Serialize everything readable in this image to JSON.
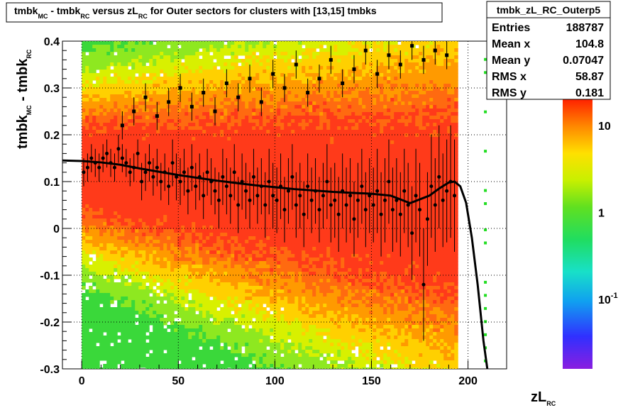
{
  "chart_data": {
    "type": "heatmap",
    "title_parts": [
      {
        "text": "tmbk",
        "sub": "MC"
      },
      {
        "text": " - tmbk",
        "sub": "RC"
      },
      {
        "text": " versus zL",
        "sub": "RC"
      },
      {
        "text": " for Outer sectors for clusters with [13,15] tmbks",
        "sub": ""
      }
    ],
    "xlabel": {
      "text": "zL",
      "sub": "RC"
    },
    "ylabel": {
      "text": "tmbk",
      "sub": "MC",
      "text2": " - tmbk",
      "sub2": "RC"
    },
    "xlim": [
      -10,
      220
    ],
    "ylim": [
      -0.3,
      0.4
    ],
    "x_ticks": [
      {
        "label": "0",
        "v": 0
      },
      {
        "label": "50",
        "v": 50
      },
      {
        "label": "100",
        "v": 100
      },
      {
        "label": "150",
        "v": 150
      },
      {
        "label": "200",
        "v": 200
      }
    ],
    "y_ticks": [
      {
        "label": "-0.3",
        "v": -0.3
      },
      {
        "label": "-0.2",
        "v": -0.2
      },
      {
        "label": "-0.1",
        "v": -0.1
      },
      {
        "label": "0",
        "v": 0
      },
      {
        "label": "0.1",
        "v": 0.1
      },
      {
        "label": "0.2",
        "v": 0.2
      },
      {
        "label": "0.3",
        "v": 0.3
      },
      {
        "label": "0.4",
        "v": 0.4
      }
    ],
    "stats": {
      "name": "tmbk_zL_RC_Outerp5",
      "rows": [
        {
          "key": "Entries",
          "value": "188787"
        },
        {
          "key": "Mean x",
          "value": "104.8"
        },
        {
          "key": "Mean y",
          "value": "0.07047"
        },
        {
          "key": "RMS x",
          "value": "58.87"
        },
        {
          "key": "RMS y",
          "value": "0.181"
        }
      ]
    },
    "palette_labels": [
      {
        "label": "10",
        "value": 10
      },
      {
        "label": "1",
        "value": 1
      },
      {
        "label": "10",
        "exp": "-1",
        "value": 0.1
      }
    ],
    "colors": {
      "low": "#22cc22",
      "mid": "#ccee00",
      "high": "#ff3300",
      "profile": "#000000"
    },
    "fit_curve": {
      "x": [
        -10,
        0,
        10,
        20,
        30,
        40,
        50,
        60,
        70,
        80,
        90,
        100,
        110,
        120,
        130,
        140,
        150,
        160,
        170,
        180,
        185,
        190,
        193,
        196,
        199,
        202,
        205,
        208,
        210
      ],
      "y": [
        0.145,
        0.144,
        0.141,
        0.136,
        0.128,
        0.121,
        0.114,
        0.108,
        0.102,
        0.097,
        0.092,
        0.088,
        0.084,
        0.081,
        0.078,
        0.076,
        0.074,
        0.07,
        0.054,
        0.07,
        0.085,
        0.098,
        0.1,
        0.09,
        0.055,
        -0.02,
        -0.12,
        -0.24,
        -0.3
      ]
    },
    "profile": {
      "x": [
        1,
        3,
        5,
        7,
        9,
        11,
        13,
        15,
        17,
        19,
        21,
        23,
        25,
        27,
        29,
        31,
        33,
        35,
        37,
        39,
        41,
        43,
        45,
        47,
        49,
        51,
        53,
        55,
        57,
        59,
        61,
        63,
        65,
        67,
        69,
        71,
        73,
        75,
        77,
        79,
        81,
        83,
        85,
        87,
        89,
        91,
        93,
        95,
        97,
        99,
        101,
        103,
        105,
        107,
        109,
        111,
        113,
        115,
        117,
        119,
        121,
        123,
        125,
        127,
        129,
        131,
        133,
        135,
        137,
        139,
        141,
        143,
        145,
        147,
        149,
        151,
        153,
        155,
        157,
        159,
        161,
        163,
        165,
        167,
        169,
        171,
        173,
        175,
        177,
        179,
        181,
        183,
        185,
        187,
        189,
        191,
        193
      ],
      "y": [
        0.12,
        0.13,
        0.15,
        0.14,
        0.13,
        0.15,
        0.16,
        0.14,
        0.13,
        0.17,
        0.15,
        0.14,
        0.12,
        0.13,
        0.16,
        0.1,
        0.12,
        0.14,
        0.11,
        0.13,
        0.1,
        0.12,
        0.09,
        0.14,
        0.11,
        0.1,
        0.12,
        0.08,
        0.13,
        0.09,
        0.11,
        0.07,
        0.12,
        0.1,
        0.08,
        0.06,
        0.11,
        0.09,
        0.07,
        0.12,
        0.05,
        0.1,
        0.08,
        0.06,
        0.11,
        0.07,
        0.09,
        0.05,
        0.1,
        0.07,
        0.06,
        0.09,
        0.04,
        0.08,
        0.11,
        0.05,
        0.07,
        0.03,
        0.09,
        0.06,
        0.08,
        0.04,
        0.07,
        0.1,
        0.05,
        0.06,
        0.03,
        0.08,
        0.05,
        0.07,
        0.02,
        0.06,
        0.09,
        0.04,
        0.07,
        0.05,
        0.08,
        0.03,
        0.06,
        0.1,
        0.04,
        0.06,
        0.03,
        0.08,
        0.05,
        -0.01,
        0.07,
        0.04,
        -0.12,
        0.02,
        0.09,
        0.05,
        0.11,
        0.06,
        0.08,
        0.1,
        0.07
      ],
      "err": [
        0.03,
        0.03,
        0.03,
        0.03,
        0.03,
        0.03,
        0.03,
        0.03,
        0.03,
        0.03,
        0.03,
        0.03,
        0.03,
        0.03,
        0.03,
        0.04,
        0.04,
        0.04,
        0.04,
        0.04,
        0.04,
        0.04,
        0.04,
        0.05,
        0.05,
        0.05,
        0.05,
        0.05,
        0.05,
        0.05,
        0.05,
        0.05,
        0.05,
        0.05,
        0.05,
        0.06,
        0.06,
        0.06,
        0.06,
        0.06,
        0.06,
        0.06,
        0.06,
        0.06,
        0.06,
        0.06,
        0.06,
        0.07,
        0.07,
        0.07,
        0.07,
        0.07,
        0.07,
        0.07,
        0.07,
        0.07,
        0.07,
        0.07,
        0.07,
        0.07,
        0.07,
        0.07,
        0.07,
        0.08,
        0.08,
        0.08,
        0.08,
        0.08,
        0.08,
        0.08,
        0.08,
        0.08,
        0.08,
        0.08,
        0.08,
        0.08,
        0.09,
        0.09,
        0.09,
        0.09,
        0.09,
        0.09,
        0.09,
        0.09,
        0.09,
        0.1,
        0.1,
        0.1,
        0.12,
        0.1,
        0.11,
        0.1,
        0.11,
        0.1,
        0.11,
        0.12,
        0.12
      ]
    },
    "rms_band": {
      "x": [
        21,
        27,
        33,
        39,
        45,
        51,
        57,
        63,
        69,
        75,
        81,
        87,
        93,
        99,
        105,
        111,
        117,
        123,
        129,
        135,
        141,
        147,
        153,
        159,
        165,
        171,
        177,
        183,
        189
      ],
      "y": [
        0.22,
        0.25,
        0.28,
        0.24,
        0.27,
        0.3,
        0.26,
        0.29,
        0.25,
        0.31,
        0.28,
        0.32,
        0.27,
        0.33,
        0.3,
        0.35,
        0.29,
        0.32,
        0.36,
        0.31,
        0.34,
        0.38,
        0.33,
        0.37,
        0.35,
        0.39,
        0.36,
        0.38,
        0.37
      ]
    }
  }
}
